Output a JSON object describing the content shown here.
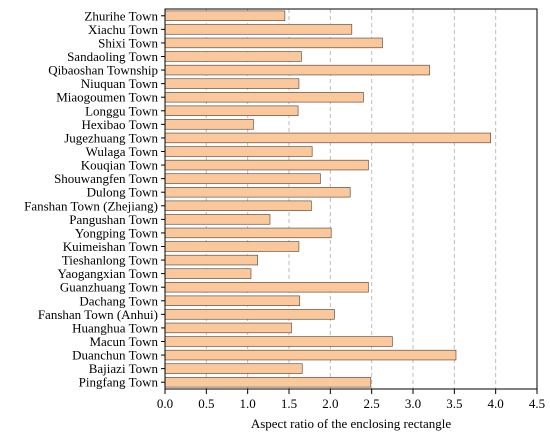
{
  "chart_data": {
    "type": "bar",
    "orientation": "horizontal",
    "categories": [
      "Zhurihe Town",
      "Xiachu Town",
      "Shixi Town",
      "Sandaoling Town",
      "Qibaoshan Township",
      "Niuquan Town",
      "Miaogoumen Town",
      "Longgu Town",
      "Hexibao Town",
      "Jugezhuang Town",
      "Wulaga Town",
      "Kouqian Town",
      "Shouwangfen Town",
      "Dulong Town",
      "Fanshan Town (Zhejiang)",
      "Pangushan Town",
      "Yongping Town",
      "Kuimeishan Town",
      "Tieshanlong Town",
      "Yaogangxian Town",
      "Guanzhuang Town",
      "Dachang Town",
      "Fanshan Town (Anhui)",
      "Huanghua Town",
      "Macun Town",
      "Duanchun Town",
      "Bajiazi Town",
      "Pingfang Town"
    ],
    "values": [
      1.45,
      2.26,
      2.63,
      1.65,
      3.2,
      1.62,
      2.4,
      1.61,
      1.07,
      3.94,
      1.78,
      2.46,
      1.88,
      2.24,
      1.77,
      1.27,
      2.01,
      1.62,
      1.12,
      1.04,
      2.46,
      1.63,
      2.05,
      1.53,
      2.75,
      3.52,
      1.66,
      2.49
    ],
    "xlabel": "Aspect ratio of the enclosing rectangle",
    "ylabel": "",
    "xlim": [
      0,
      4.5
    ],
    "xticks": [
      "0.0",
      "0.5",
      "1.0",
      "1.5",
      "2.0",
      "2.5",
      "3.0",
      "3.5",
      "4.0",
      "4.5"
    ],
    "grid": "vertical dashed",
    "colors": {
      "bar_fill": "#fbc89c",
      "bar_stroke": "#4a3a30",
      "grid": "#bdbdbd",
      "axis": "#000000"
    }
  }
}
